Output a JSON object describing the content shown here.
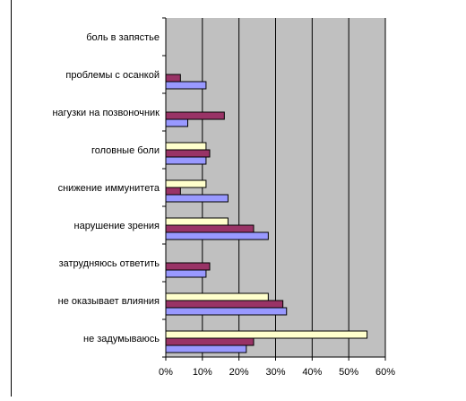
{
  "chart_data": {
    "type": "bar",
    "orientation": "horizontal",
    "categories": [
      "боль в запястье",
      "проблемы с осанкой",
      "нагузки на позвоночник",
      "головные боли",
      "снижение иммунитета",
      "нарушение зрения",
      "затрудняюсь ответить",
      "не оказывает влияния",
      "не задумываюсь"
    ],
    "series": [
      {
        "color": "#ffffcc",
        "values": [
          0,
          0,
          0,
          11,
          11,
          17,
          0,
          28,
          55
        ]
      },
      {
        "color": "#993366",
        "values": [
          0,
          4,
          16,
          12,
          4,
          24,
          12,
          32,
          24
        ]
      },
      {
        "color": "#9999ff",
        "values": [
          0,
          11,
          6,
          11,
          17,
          28,
          11,
          33,
          22
        ]
      }
    ],
    "x_ticks": [
      "0%",
      "10%",
      "20%",
      "30%",
      "40%",
      "50%",
      "60%"
    ],
    "xlim": [
      0,
      60
    ],
    "grid": "vertical",
    "plot_background": "#c0c0c0",
    "legend": "none",
    "title": "",
    "xlabel": "",
    "ylabel": ""
  }
}
